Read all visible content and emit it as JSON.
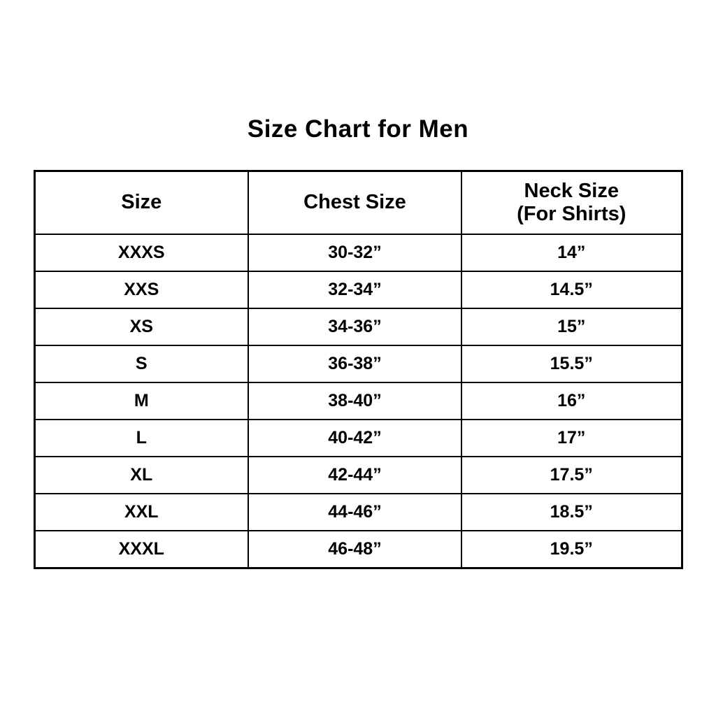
{
  "title": "Size Chart for Men",
  "table": {
    "columns": [
      {
        "label": "Size",
        "sublabel": ""
      },
      {
        "label": "Chest Size",
        "sublabel": ""
      },
      {
        "label": "Neck Size",
        "sublabel": "(For Shirts)"
      }
    ],
    "rows": [
      {
        "size": "XXXS",
        "chest": "30-32”",
        "neck": "14”"
      },
      {
        "size": "XXS",
        "chest": "32-34”",
        "neck": "14.5”"
      },
      {
        "size": "XS",
        "chest": "34-36”",
        "neck": "15”"
      },
      {
        "size": "S",
        "chest": "36-38”",
        "neck": "15.5”"
      },
      {
        "size": "M",
        "chest": "38-40”",
        "neck": "16”"
      },
      {
        "size": "L",
        "chest": "40-42”",
        "neck": "17”"
      },
      {
        "size": "XL",
        "chest": "42-44”",
        "neck": "17.5”"
      },
      {
        "size": "XXL",
        "chest": "44-46”",
        "neck": "18.5”"
      },
      {
        "size": "XXXL",
        "chest": "46-48”",
        "neck": "19.5”"
      }
    ]
  }
}
